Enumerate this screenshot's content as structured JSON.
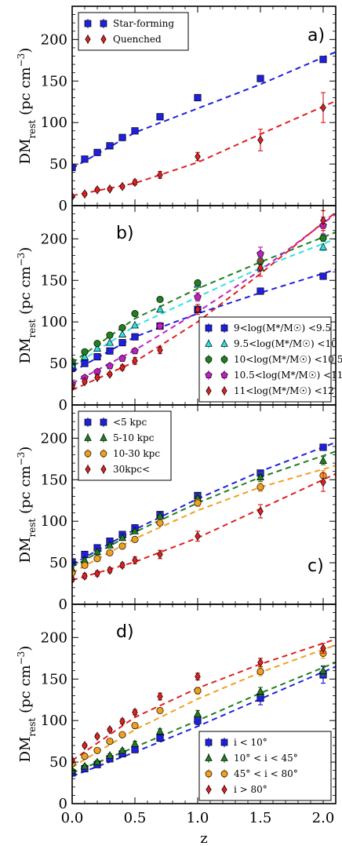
{
  "chart_data": [
    {
      "type": "scatter",
      "panel_label": "a)",
      "ylabel": "DM_rest (pc cm^-3)",
      "xlim": [
        0.0,
        2.1
      ],
      "ylim": [
        0,
        240
      ],
      "yticks": [
        0,
        50,
        100,
        150,
        200
      ],
      "legend_position": "top-left",
      "series": [
        {
          "name": "Star-forming",
          "color": "#1f1fe0",
          "marker": "square",
          "x": [
            0.0,
            0.1,
            0.2,
            0.3,
            0.4,
            0.5,
            0.7,
            1.0,
            1.5,
            2.0
          ],
          "y": [
            46,
            56,
            64,
            72,
            82,
            90,
            107,
            130,
            153,
            176
          ],
          "err": [
            0,
            0,
            0,
            0,
            0,
            0,
            0,
            0,
            0,
            2
          ],
          "fit": [
            [
              0.0,
              45
            ],
            [
              0.5,
              88
            ],
            [
              1.0,
              117
            ],
            [
              1.5,
              146
            ],
            [
              2.1,
              185
            ]
          ]
        },
        {
          "name": "Quenched",
          "color": "#e02020",
          "marker": "diamond",
          "x": [
            0.0,
            0.1,
            0.2,
            0.3,
            0.4,
            0.5,
            0.7,
            1.0,
            1.5,
            2.0
          ],
          "y": [
            11,
            14,
            19,
            20,
            23,
            28,
            37,
            59,
            79,
            118
          ],
          "err": [
            1,
            2,
            2,
            2,
            2,
            3,
            4,
            5,
            13,
            18
          ],
          "fit": [
            [
              0.0,
              12
            ],
            [
              0.5,
              27
            ],
            [
              1.0,
              52
            ],
            [
              1.5,
              86
            ],
            [
              2.1,
              126
            ]
          ]
        }
      ]
    },
    {
      "type": "scatter",
      "panel_label": "b)",
      "ylabel": "DM_rest (pc cm^-3)",
      "xlim": [
        0.0,
        2.1
      ],
      "ylim": [
        0,
        240
      ],
      "yticks": [
        0,
        50,
        100,
        150,
        200
      ],
      "legend_position": "bottom-right",
      "series": [
        {
          "name": "9<log(M*/M☉) <9.5",
          "color": "#1f1fe0",
          "marker": "square",
          "x": [
            0.0,
            0.1,
            0.2,
            0.3,
            0.4,
            0.5,
            0.7,
            1.0,
            1.5,
            2.0
          ],
          "y": [
            45,
            50,
            58,
            65,
            75,
            82,
            95,
            115,
            137,
            155
          ],
          "err": [
            0,
            0,
            0,
            0,
            0,
            0,
            0,
            3,
            0,
            0
          ],
          "fit": [
            [
              0.0,
              40
            ],
            [
              0.5,
              82
            ],
            [
              1.0,
              110
            ],
            [
              1.5,
              135
            ],
            [
              2.1,
              163
            ]
          ]
        },
        {
          "name": "9.5<log(M*/M☉) <10",
          "color": "#30e0e0",
          "marker": "triangle",
          "x": [
            0.0,
            0.1,
            0.2,
            0.3,
            0.4,
            0.5,
            0.7,
            1.0,
            1.5,
            2.0
          ],
          "y": [
            48,
            58,
            68,
            75,
            85,
            96,
            115,
            145,
            165,
            190
          ],
          "err": [
            0,
            0,
            0,
            0,
            0,
            0,
            0,
            0,
            0,
            4
          ],
          "fit": [
            [
              0.0,
              46
            ],
            [
              0.5,
              95
            ],
            [
              1.0,
              130
            ],
            [
              1.5,
              165
            ],
            [
              2.1,
              200
            ]
          ]
        },
        {
          "name": "10<log(M*/M☉) <10.5",
          "color": "#208020",
          "marker": "circle",
          "x": [
            0.0,
            0.1,
            0.2,
            0.3,
            0.4,
            0.5,
            0.7,
            1.0,
            1.5,
            2.0
          ],
          "y": [
            52,
            64,
            74,
            84,
            93,
            110,
            127,
            147,
            173,
            201
          ],
          "err": [
            0,
            0,
            0,
            0,
            0,
            0,
            0,
            0,
            4,
            4
          ],
          "fit": [
            [
              0.0,
              51
            ],
            [
              0.5,
              104
            ],
            [
              1.0,
              140
            ],
            [
              1.5,
              172
            ],
            [
              2.1,
              208
            ]
          ]
        },
        {
          "name": "10.5<log(M*/M☉) <11",
          "color": "#c020c0",
          "marker": "pentagon",
          "x": [
            0.0,
            0.1,
            0.2,
            0.3,
            0.4,
            0.5,
            0.7,
            1.0,
            1.5,
            2.0
          ],
          "y": [
            25,
            33,
            40,
            47,
            56,
            65,
            95,
            130,
            182,
            216
          ],
          "err": [
            2,
            2,
            2,
            2,
            3,
            3,
            4,
            5,
            8,
            10
          ],
          "fit": [
            [
              0.0,
              26
            ],
            [
              0.5,
              66
            ],
            [
              1.0,
              112
            ],
            [
              1.5,
              162
            ],
            [
              2.1,
              230
            ]
          ]
        },
        {
          "name": "11<log(M*/M☉) <12",
          "color": "#e02020",
          "marker": "diamond",
          "x": [
            0.0,
            0.1,
            0.2,
            0.3,
            0.4,
            0.5,
            0.7,
            1.0,
            1.5,
            2.0
          ],
          "y": [
            22,
            28,
            33,
            37,
            45,
            53,
            66,
            115,
            165,
            222
          ],
          "err": [
            2,
            2,
            2,
            2,
            3,
            4,
            4,
            6,
            10,
            12
          ],
          "fit": [
            [
              0.0,
              18
            ],
            [
              0.5,
              52
            ],
            [
              1.0,
              100
            ],
            [
              1.5,
              158
            ],
            [
              2.1,
              232
            ]
          ]
        }
      ]
    },
    {
      "type": "scatter",
      "panel_label": "c)",
      "ylabel": "DM_rest (pc cm^-3)",
      "xlim": [
        0.0,
        2.1
      ],
      "ylim": [
        0,
        240
      ],
      "yticks": [
        0,
        50,
        100,
        150,
        200
      ],
      "legend_position": "top-left",
      "series": [
        {
          "name": "<5 kpc",
          "color": "#1f1fe0",
          "marker": "square",
          "x": [
            0.0,
            0.1,
            0.2,
            0.3,
            0.4,
            0.5,
            0.7,
            1.0,
            1.5,
            2.0
          ],
          "y": [
            51,
            60,
            68,
            76,
            84,
            92,
            108,
            131,
            158,
            189
          ],
          "err": [
            0,
            0,
            0,
            0,
            0,
            0,
            2,
            3,
            3,
            3
          ],
          "fit": [
            [
              0.0,
              48
            ],
            [
              0.5,
              90
            ],
            [
              1.0,
              127
            ],
            [
              1.5,
              160
            ],
            [
              2.1,
              195
            ]
          ]
        },
        {
          "name": "5-10 kpc",
          "color": "#208020",
          "marker": "triangle",
          "x": [
            0.0,
            0.1,
            0.2,
            0.3,
            0.4,
            0.5,
            0.7,
            1.0,
            1.5,
            2.0
          ],
          "y": [
            42,
            53,
            63,
            71,
            80,
            88,
            106,
            128,
            153,
            173
          ],
          "err": [
            2,
            2,
            2,
            2,
            2,
            2,
            3,
            4,
            5,
            5
          ],
          "fit": [
            [
              0.0,
              45
            ],
            [
              0.5,
              87
            ],
            [
              1.0,
              122
            ],
            [
              1.5,
              153
            ],
            [
              2.1,
              184
            ]
          ]
        },
        {
          "name": "10-30 kpc",
          "color": "#f0a020",
          "marker": "circle",
          "x": [
            0.0,
            0.1,
            0.2,
            0.3,
            0.4,
            0.5,
            0.7,
            1.0,
            1.5,
            2.0
          ],
          "y": [
            38,
            47,
            55,
            62,
            70,
            78,
            98,
            122,
            141,
            155
          ],
          "err": [
            2,
            2,
            2,
            2,
            2,
            3,
            3,
            4,
            5,
            6
          ],
          "fit": [
            [
              0.0,
              38
            ],
            [
              0.5,
              79
            ],
            [
              1.0,
              113
            ],
            [
              1.5,
              141
            ],
            [
              2.1,
              167
            ]
          ]
        },
        {
          "name": "30kpc<",
          "color": "#e02020",
          "marker": "diamond",
          "x": [
            0.0,
            0.1,
            0.2,
            0.3,
            0.4,
            0.5,
            0.7,
            1.0,
            1.5,
            2.0
          ],
          "y": [
            30,
            34,
            37,
            41,
            47,
            53,
            60,
            82,
            112,
            147
          ],
          "err": [
            3,
            3,
            3,
            3,
            3,
            4,
            5,
            6,
            8,
            11
          ],
          "fit": [
            [
              0.0,
              29
            ],
            [
              0.5,
              51
            ],
            [
              1.0,
              80
            ],
            [
              1.5,
              115
            ],
            [
              2.1,
              157
            ]
          ]
        }
      ]
    },
    {
      "type": "scatter",
      "panel_label": "d)",
      "ylabel": "DM_rest (pc cm^-3)",
      "xlabel": "z",
      "xlim": [
        0.0,
        2.1
      ],
      "ylim": [
        0,
        240
      ],
      "yticks": [
        0,
        50,
        100,
        150,
        200
      ],
      "xticks": [
        "0.0",
        "0.5",
        "1.0",
        "1.5",
        "2.0"
      ],
      "legend_position": "bottom-right",
      "series": [
        {
          "name": "i < 10°",
          "color": "#1f1fe0",
          "marker": "square",
          "x": [
            0.0,
            0.1,
            0.2,
            0.3,
            0.4,
            0.5,
            0.7,
            1.0,
            1.5,
            2.0
          ],
          "y": [
            37,
            42,
            47,
            54,
            60,
            65,
            79,
            100,
            127,
            155
          ],
          "err": [
            2,
            2,
            2,
            2,
            3,
            3,
            4,
            5,
            8,
            10
          ],
          "fit": [
            [
              0.0,
              33
            ],
            [
              0.5,
              62
            ],
            [
              1.0,
              93
            ],
            [
              1.5,
              126
            ],
            [
              2.1,
              165
            ]
          ]
        },
        {
          "name": "10° < i < 45°",
          "color": "#208020",
          "marker": "triangle",
          "x": [
            0.0,
            0.1,
            0.2,
            0.3,
            0.4,
            0.5,
            0.7,
            1.0,
            1.5,
            2.0
          ],
          "y": [
            40,
            45,
            50,
            58,
            64,
            72,
            87,
            108,
            135,
            160
          ],
          "err": [
            2,
            2,
            2,
            2,
            2,
            3,
            3,
            4,
            5,
            6
          ],
          "fit": [
            [
              0.0,
              37
            ],
            [
              0.5,
              68
            ],
            [
              1.0,
              100
            ],
            [
              1.5,
              133
            ],
            [
              2.1,
              170
            ]
          ]
        },
        {
          "name": "45° < i < 80°",
          "color": "#f0a020",
          "marker": "circle",
          "x": [
            0.0,
            0.1,
            0.2,
            0.3,
            0.4,
            0.5,
            0.7,
            1.0,
            1.5,
            2.0
          ],
          "y": [
            48,
            57,
            64,
            75,
            83,
            94,
            112,
            136,
            159,
            181
          ],
          "err": [
            2,
            2,
            2,
            2,
            2,
            3,
            3,
            4,
            5,
            6
          ],
          "fit": [
            [
              0.0,
              44
            ],
            [
              0.5,
              89
            ],
            [
              1.0,
              126
            ],
            [
              1.5,
              158
            ],
            [
              2.1,
              191
            ]
          ]
        },
        {
          "name": "i > 80°",
          "color": "#e02020",
          "marker": "diamond",
          "x": [
            0.0,
            0.1,
            0.2,
            0.3,
            0.4,
            0.5,
            0.7,
            1.0,
            1.5,
            2.0
          ],
          "y": [
            52,
            70,
            81,
            89,
            99,
            110,
            129,
            153,
            170,
            187
          ],
          "err": [
            2,
            2,
            2,
            2,
            3,
            3,
            4,
            4,
            5,
            6
          ],
          "fit": [
            [
              0.0,
              52
            ],
            [
              0.5,
              104
            ],
            [
              1.0,
              139
            ],
            [
              1.5,
              168
            ],
            [
              2.1,
              198
            ]
          ]
        }
      ]
    }
  ]
}
